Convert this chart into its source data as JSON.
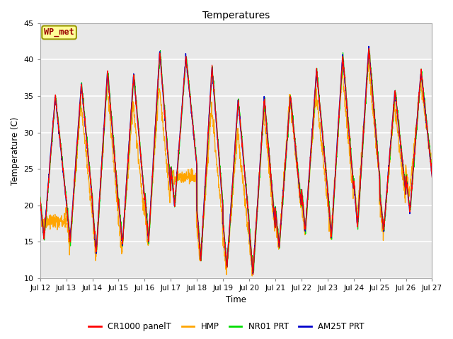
{
  "title": "Temperatures",
  "ylabel": "Temperature (C)",
  "xlabel": "Time",
  "annotation": "WP_met",
  "ylim": [
    10,
    45
  ],
  "xlim": [
    0,
    15
  ],
  "plot_bg_color": "#e8e8e8",
  "series": [
    {
      "label": "CR1000 panelT",
      "color": "#ff0000"
    },
    {
      "label": "HMP",
      "color": "#ffa500"
    },
    {
      "label": "NR01 PRT",
      "color": "#00dd00"
    },
    {
      "label": "AM25T PRT",
      "color": "#0000cc"
    }
  ],
  "x_tick_positions": [
    0,
    1,
    2,
    3,
    4,
    5,
    6,
    7,
    8,
    9,
    10,
    11,
    12,
    13,
    14,
    15
  ],
  "x_tick_labels": [
    "Jul 12",
    "Jul 13",
    "Jul 14",
    "Jul 15",
    "Jul 16",
    "Jul 17",
    "Jul 18",
    "Jul 19",
    "Jul 20",
    "Jul 21",
    "Jul 22",
    "Jul 23",
    "Jul 24",
    "Jul 25",
    "Jul 26",
    "Jul 27"
  ],
  "y_ticks": [
    10,
    15,
    20,
    25,
    30,
    35,
    40,
    45
  ],
  "day_peaks": [
    35.0,
    36.7,
    38.5,
    38.0,
    41.2,
    40.5,
    39.0,
    34.5,
    34.7,
    35.0,
    38.5,
    40.7,
    41.7,
    35.8,
    38.5
  ],
  "day_mins": [
    15.5,
    15.0,
    13.5,
    14.5,
    15.0,
    20.0,
    12.5,
    11.5,
    10.5,
    14.3,
    16.5,
    15.7,
    17.0,
    16.5,
    19.0
  ],
  "hmp_peaks": [
    18.0,
    34.0,
    36.5,
    34.0,
    36.5,
    24.0,
    33.5,
    30.0,
    33.0,
    35.0,
    35.5,
    38.5,
    39.5,
    34.0,
    37.0
  ],
  "hmp_mins": [
    17.5,
    14.0,
    13.0,
    13.5,
    14.5,
    24.0,
    12.0,
    11.0,
    10.5,
    14.0,
    16.0,
    15.5,
    18.5,
    16.0,
    21.5
  ],
  "ppd": 144,
  "n_days": 15,
  "peak_hour": 0.58,
  "min_hour": 0.15
}
